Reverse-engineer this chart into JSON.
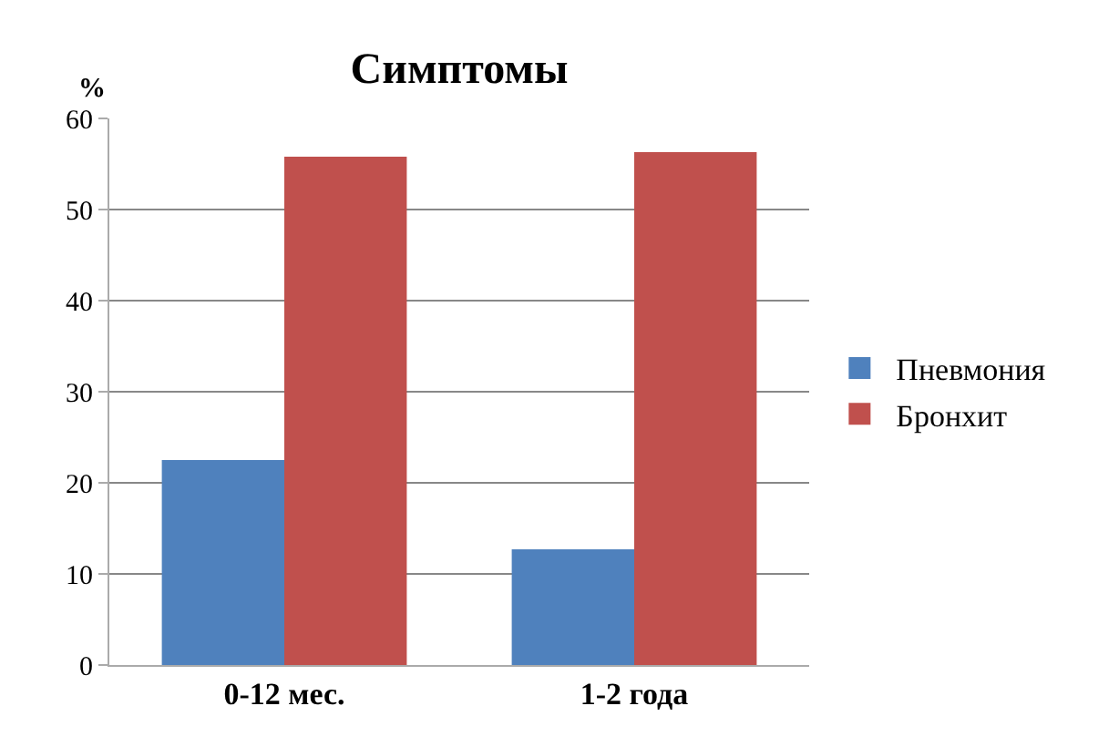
{
  "chart_data": {
    "type": "bar",
    "title": "Симптомы",
    "ylabel": "%",
    "categories": [
      "0-12 мес.",
      "1-2 года"
    ],
    "series": [
      {
        "name": "Пневмония",
        "color": "#4f81bd",
        "values": [
          22.5,
          12.7
        ]
      },
      {
        "name": "Бронхит",
        "color": "#c0504d",
        "values": [
          55.8,
          56.3
        ]
      }
    ],
    "ylim": [
      0,
      60
    ],
    "yticks": [
      0,
      10,
      20,
      30,
      40,
      50,
      60
    ],
    "grid": "y",
    "legend": "right"
  }
}
